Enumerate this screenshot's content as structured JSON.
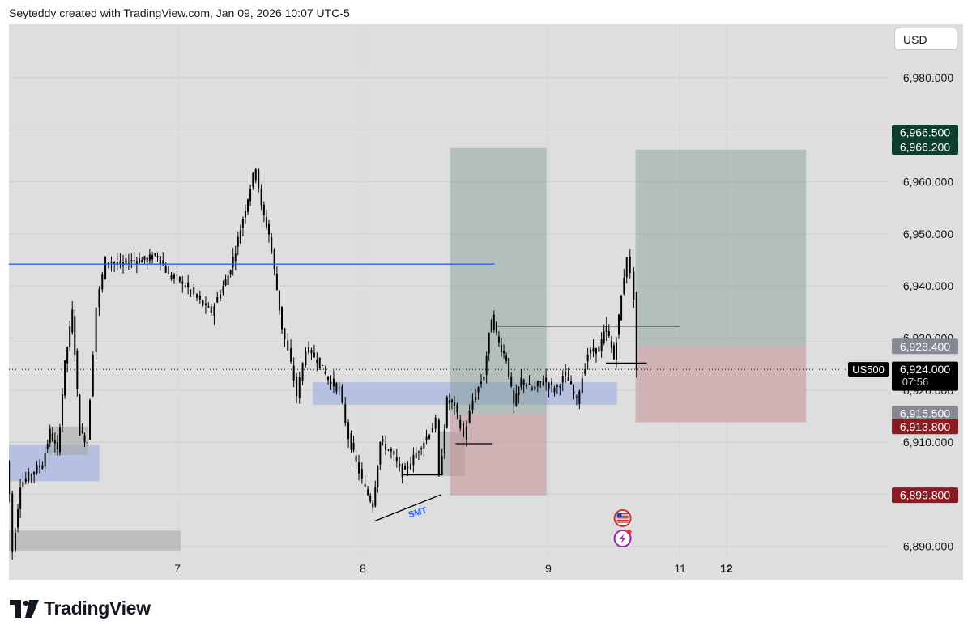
{
  "header": {
    "attribution": "Seyteddy created with TradingView.com, Jan 09, 2026 10:07 UTC-5"
  },
  "toolbar": {
    "currency_label": "USD"
  },
  "footer": {
    "brand": "TradingView"
  },
  "chart_data": {
    "type": "candlestick",
    "symbol_label": "US500",
    "currency": "USD",
    "ylim": [
      6886,
      6988
    ],
    "y_ticks": [
      "6,890.000",
      "6,900.000",
      "6,910.000",
      "6,920.000",
      "6,930.000",
      "6,940.000",
      "6,950.000",
      "6,960.000",
      "6,970.000",
      "6,980.000"
    ],
    "x_ticks": [
      {
        "label": "7",
        "t": 7.0,
        "bold": false
      },
      {
        "label": "8",
        "t": 8.0,
        "bold": false
      },
      {
        "label": "9",
        "t": 9.0,
        "bold": false
      },
      {
        "label": "11",
        "t": 9.71,
        "bold": false
      },
      {
        "label": "12",
        "t": 9.96,
        "bold": true
      }
    ],
    "xlim": [
      6.07,
      11.12
    ],
    "price_path": [
      [
        6.07,
        6913
      ],
      [
        6.1,
        6900
      ],
      [
        6.12,
        6889
      ],
      [
        6.16,
        6902
      ],
      [
        6.22,
        6904
      ],
      [
        6.28,
        6906
      ],
      [
        6.32,
        6912
      ],
      [
        6.36,
        6908
      ],
      [
        6.4,
        6925
      ],
      [
        6.44,
        6935
      ],
      [
        6.48,
        6912
      ],
      [
        6.52,
        6910
      ],
      [
        6.57,
        6936
      ],
      [
        6.62,
        6945
      ],
      [
        6.7,
        6944
      ],
      [
        6.76,
        6945
      ],
      [
        6.83,
        6945
      ],
      [
        6.9,
        6946
      ],
      [
        6.96,
        6942
      ],
      [
        7.02,
        6941
      ],
      [
        7.08,
        6939
      ],
      [
        7.13,
        6937
      ],
      [
        7.19,
        6935
      ],
      [
        7.24,
        6939
      ],
      [
        7.28,
        6942
      ],
      [
        7.32,
        6947
      ],
      [
        7.36,
        6953
      ],
      [
        7.4,
        6959
      ],
      [
        7.43,
        6963
      ],
      [
        7.46,
        6955
      ],
      [
        7.5,
        6950
      ],
      [
        7.53,
        6943
      ],
      [
        7.57,
        6932
      ],
      [
        7.62,
        6925
      ],
      [
        7.65,
        6919
      ],
      [
        7.7,
        6928
      ],
      [
        7.76,
        6926
      ],
      [
        7.82,
        6922
      ],
      [
        7.88,
        6920
      ],
      [
        7.93,
        6911
      ],
      [
        7.97,
        6906
      ],
      [
        8.02,
        6901
      ],
      [
        8.06,
        6898
      ],
      [
        8.1,
        6910
      ],
      [
        8.16,
        6908
      ],
      [
        8.22,
        6904
      ],
      [
        8.28,
        6907
      ],
      [
        8.35,
        6911
      ],
      [
        8.4,
        6914
      ],
      [
        8.42,
        6903
      ],
      [
        8.46,
        6918
      ],
      [
        8.5,
        6917
      ],
      [
        8.55,
        6911
      ],
      [
        8.6,
        6918
      ],
      [
        8.66,
        6923
      ],
      [
        8.7,
        6934
      ],
      [
        8.74,
        6929
      ],
      [
        8.78,
        6926
      ],
      [
        8.82,
        6917
      ],
      [
        8.86,
        6922
      ],
      [
        8.92,
        6920
      ],
      [
        8.98,
        6922
      ],
      [
        9.04,
        6920
      ],
      [
        9.1,
        6923
      ],
      [
        9.16,
        6918
      ],
      [
        9.22,
        6927
      ],
      [
        9.28,
        6928
      ],
      [
        9.32,
        6932
      ],
      [
        9.36,
        6926
      ],
      [
        9.4,
        6938
      ],
      [
        9.43,
        6946
      ],
      [
        9.45,
        6942
      ],
      [
        9.47,
        6938
      ],
      [
        9.48,
        6924
      ]
    ],
    "zones": [
      {
        "kind": "demand",
        "t0": 6.07,
        "t1": 6.58,
        "p_top": 6909.5,
        "p_bottom": 6902.5
      },
      {
        "kind": "grey",
        "t0": 6.31,
        "t1": 6.52,
        "p_top": 6913,
        "p_bottom": 6907.5
      },
      {
        "kind": "grey",
        "t0": 6.07,
        "t1": 7.02,
        "p_top": 6893,
        "p_bottom": 6889.2
      },
      {
        "kind": "demand",
        "t0": 7.73,
        "t1": 9.37,
        "p_top": 6921.5,
        "p_bottom": 6917.2
      },
      {
        "kind": "grey",
        "t0": 8.4,
        "t1": 8.55,
        "p_top": 6912,
        "p_bottom": 6903.5
      },
      {
        "kind": "target",
        "t0": 8.47,
        "t1": 8.99,
        "p_top": 6966.5,
        "p_bottom": 6915.5
      },
      {
        "kind": "stop",
        "t0": 8.47,
        "t1": 8.99,
        "p_top": 6915.5,
        "p_bottom": 6899.8
      },
      {
        "kind": "target",
        "t0": 9.47,
        "t1": 10.39,
        "p_top": 6966.2,
        "p_bottom": 6928.4
      },
      {
        "kind": "stop",
        "t0": 9.47,
        "t1": 10.39,
        "p_top": 6928.4,
        "p_bottom": 6913.8
      }
    ],
    "lines": [
      {
        "kind": "level",
        "t0": 6.07,
        "t1": 8.71,
        "p0": 6944.2,
        "p1": 6944.2,
        "color": "#2962ff"
      },
      {
        "kind": "smt",
        "t0": 8.06,
        "t1": 8.42,
        "p0": 6894.8,
        "p1": 6899.9,
        "color": "#000000"
      },
      {
        "kind": "level",
        "t0": 8.21,
        "t1": 8.43,
        "p0": 6903.7,
        "p1": 6903.7,
        "color": "#000000"
      },
      {
        "kind": "level",
        "t0": 8.5,
        "t1": 8.7,
        "p0": 6909.7,
        "p1": 6909.7,
        "color": "#000000"
      },
      {
        "kind": "level",
        "t0": 8.73,
        "t1": 9.71,
        "p0": 6932.3,
        "p1": 6932.3,
        "color": "#000000"
      },
      {
        "kind": "level",
        "t0": 9.31,
        "t1": 9.53,
        "p0": 6925.2,
        "p1": 6925.2,
        "color": "#000000"
      }
    ],
    "annotations": [
      {
        "text": "SMT",
        "t": 8.25,
        "p": 6895.5,
        "color": "#2962ff"
      }
    ],
    "price_labels": [
      {
        "text": "6,966.500",
        "p": 6969.5,
        "bg": "#0c3d2e",
        "fg": "#ffffff"
      },
      {
        "text": "6,966.200",
        "p": 6966.7,
        "bg": "#0c3d2e",
        "fg": "#ffffff"
      },
      {
        "text": "6,928.400",
        "p": 6928.4,
        "bg": "#868993",
        "fg": "#ffffff"
      },
      {
        "text": "6,915.500",
        "p": 6915.5,
        "bg": "#868993",
        "fg": "#ffffff"
      },
      {
        "text": "6,913.800",
        "p": 6913.0,
        "bg": "#8a1b21",
        "fg": "#ffffff"
      },
      {
        "text": "6,899.800",
        "p": 6899.8,
        "bg": "#8a1b21",
        "fg": "#ffffff"
      }
    ],
    "current_price": {
      "value": "6,924.000",
      "countdown": "07:56",
      "p": 6924.0
    },
    "events": [
      {
        "icon": "lightning-event-icon",
        "t": 9.4,
        "p": 6891.5
      },
      {
        "icon": "us-flag-event-icon",
        "t": 9.4,
        "p": 6895.4
      }
    ]
  }
}
